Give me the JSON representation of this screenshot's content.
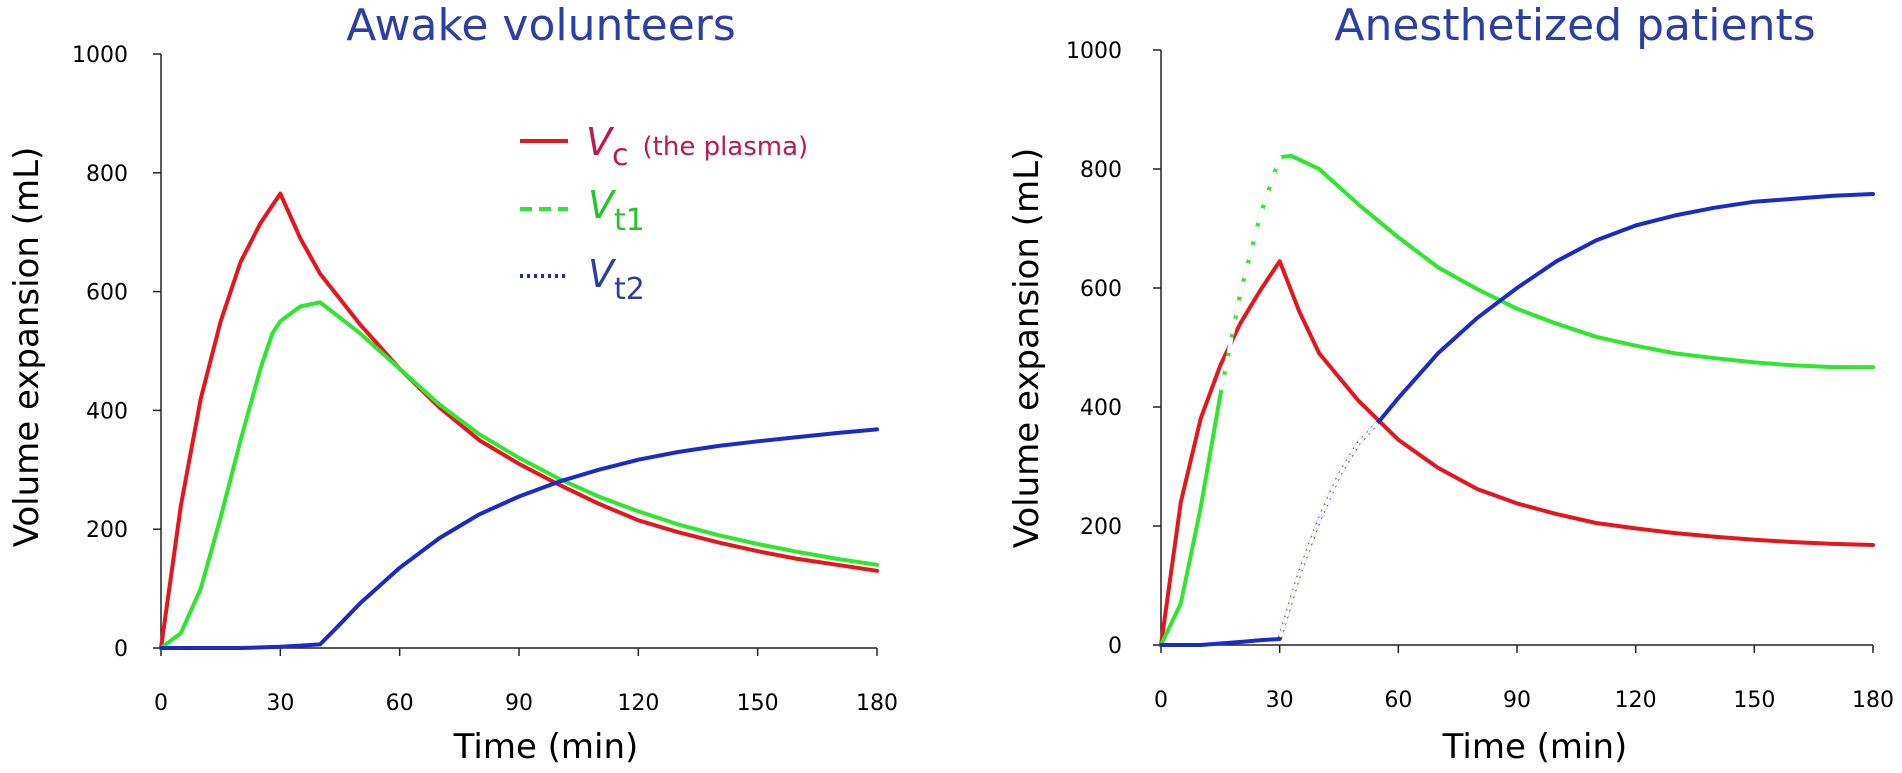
{
  "chart_data": [
    {
      "type": "line",
      "title": "Awake volunteers",
      "xlabel": "Time (min)",
      "ylabel": "Volume expansion (mL)",
      "xlim": [
        0,
        180
      ],
      "ylim": [
        0,
        1000
      ],
      "xticks": [
        "0",
        "30",
        "60",
        "90",
        "120",
        "150",
        "180"
      ],
      "yticks": [
        "0",
        "200",
        "400",
        "600",
        "800",
        "1000"
      ],
      "legend": {
        "position": "top-middle",
        "entries": [
          {
            "symbol": "V",
            "subscript": "c",
            "note": "(the plasma)",
            "color": "#e8161c",
            "style": "solid"
          },
          {
            "symbol": "V",
            "subscript": "t1",
            "note": "",
            "color": "#2ee82e",
            "style": "dashed"
          },
          {
            "symbol": "V",
            "subscript": "t2",
            "note": "",
            "color": "#1a2cc8",
            "style": "dotted"
          }
        ]
      },
      "series": [
        {
          "name": "Vc (the plasma)",
          "color": "#e8161c",
          "x": [
            0,
            5,
            10,
            15,
            20,
            25,
            30,
            35,
            40,
            50,
            60,
            70,
            80,
            90,
            100,
            110,
            120,
            130,
            140,
            150,
            160,
            170,
            180
          ],
          "values": [
            0,
            240,
            420,
            550,
            650,
            715,
            765,
            690,
            630,
            545,
            470,
            405,
            350,
            310,
            275,
            243,
            215,
            195,
            178,
            163,
            150,
            140,
            130
          ]
        },
        {
          "name": "Vt1",
          "color": "#2ee82e",
          "x": [
            0,
            5,
            10,
            15,
            20,
            25,
            28,
            30,
            35,
            40,
            50,
            60,
            70,
            80,
            90,
            100,
            110,
            120,
            130,
            140,
            150,
            160,
            170,
            180
          ],
          "values": [
            0,
            25,
            100,
            220,
            350,
            470,
            530,
            550,
            575,
            582,
            530,
            470,
            410,
            360,
            320,
            285,
            255,
            230,
            208,
            190,
            175,
            162,
            150,
            140
          ]
        },
        {
          "name": "Vt2",
          "color": "#1a2cc8",
          "x": [
            0,
            10,
            20,
            30,
            35,
            40,
            45,
            50,
            60,
            70,
            80,
            90,
            100,
            110,
            120,
            130,
            140,
            150,
            160,
            170,
            180
          ],
          "values": [
            0,
            0,
            0,
            2,
            4,
            6,
            40,
            75,
            135,
            185,
            225,
            255,
            280,
            300,
            317,
            330,
            340,
            348,
            355,
            362,
            368
          ]
        }
      ]
    },
    {
      "type": "line",
      "title": "Anesthetized patients",
      "xlabel": "Time (min)",
      "ylabel": "Volume expansion (mL)",
      "xlim": [
        0,
        180
      ],
      "ylim": [
        0,
        1000
      ],
      "xticks": [
        "0",
        "30",
        "60",
        "90",
        "120",
        "150",
        "180"
      ],
      "yticks": [
        "0",
        "200",
        "400",
        "600",
        "800",
        "1000"
      ],
      "series": [
        {
          "name": "Vc (the plasma)",
          "color": "#e8161c",
          "x": [
            0,
            5,
            10,
            15,
            20,
            25,
            30,
            35,
            40,
            50,
            60,
            70,
            80,
            90,
            100,
            110,
            120,
            130,
            140,
            150,
            160,
            170,
            180
          ],
          "values": [
            0,
            240,
            380,
            470,
            540,
            595,
            645,
            560,
            490,
            410,
            345,
            298,
            262,
            238,
            220,
            205,
            196,
            188,
            182,
            177,
            173,
            170,
            168
          ]
        },
        {
          "name": "Vt1",
          "color": "#2ee82e",
          "x": [
            0,
            5,
            10,
            15,
            20,
            25,
            30,
            33,
            40,
            50,
            60,
            70,
            80,
            90,
            100,
            110,
            120,
            130,
            140,
            150,
            160,
            170,
            180
          ],
          "values": [
            0,
            70,
            230,
            420,
            590,
            720,
            820,
            822,
            800,
            740,
            685,
            635,
            598,
            565,
            540,
            518,
            503,
            490,
            482,
            475,
            470,
            467,
            467
          ]
        },
        {
          "name": "Vt2",
          "color": "#1a2cc8",
          "x": [
            0,
            10,
            20,
            25,
            30,
            35,
            40,
            45,
            50,
            55,
            60,
            70,
            80,
            90,
            100,
            110,
            120,
            130,
            140,
            150,
            160,
            170,
            180
          ],
          "values": [
            0,
            0,
            5,
            8,
            10,
            120,
            210,
            285,
            340,
            375,
            415,
            490,
            550,
            600,
            645,
            680,
            705,
            722,
            735,
            745,
            750,
            755,
            758
          ]
        }
      ]
    }
  ]
}
